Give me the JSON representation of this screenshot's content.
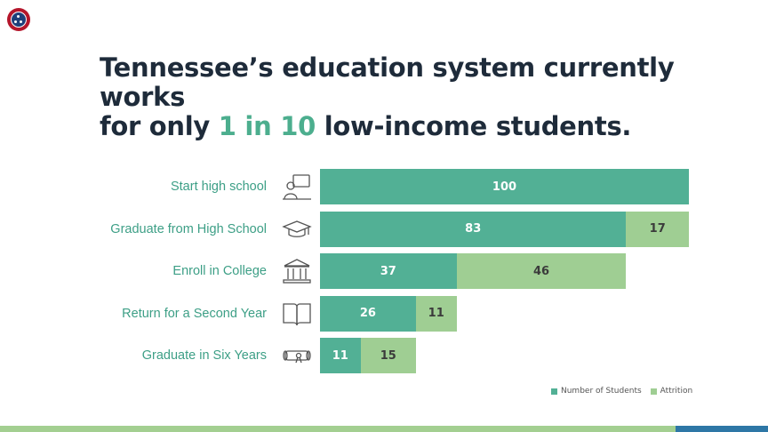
{
  "title": {
    "line1": "Tennessee’s education system currently works",
    "line2_prefix": "for only ",
    "line2_highlight": "1 in 10",
    "line2_suffix": " low-income students."
  },
  "colors": {
    "students": "#52b095",
    "attrition": "#9fce93",
    "highlight": "#4cae8e",
    "label": "#3d9f86",
    "footer_green": "#a3cf91",
    "footer_blue": "#2e77a6"
  },
  "chart_data": {
    "type": "bar",
    "orientation": "horizontal",
    "stacked": true,
    "categories": [
      "Start high school",
      "Graduate from High School",
      "Enroll in College",
      "Return for a Second Year",
      "Graduate in Six Years"
    ],
    "icons": [
      "student-at-desk-icon",
      "graduation-cap-icon",
      "college-building-icon",
      "open-book-icon",
      "diploma-scroll-icon"
    ],
    "series": [
      {
        "name": "Number of Students",
        "values": [
          100,
          83,
          37,
          26,
          11
        ]
      },
      {
        "name": "Attrition",
        "values": [
          null,
          17,
          46,
          11,
          15
        ]
      }
    ],
    "xlim": [
      0,
      100
    ],
    "legend": "bottom-right",
    "grid": false
  }
}
